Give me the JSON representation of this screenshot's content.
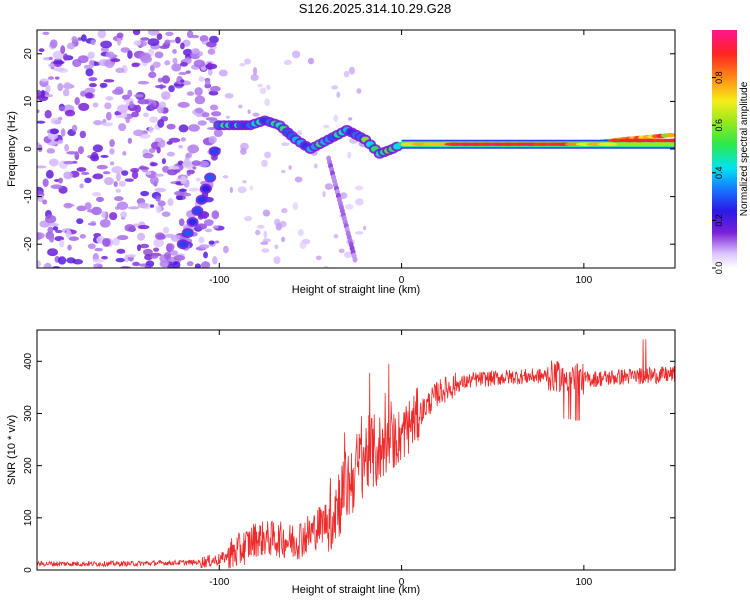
{
  "figure_title": "S126.2025.314.10.29.G28",
  "colors": {
    "snr_line": "#ee2a2a",
    "axes": "#000000",
    "spectrogram_bg": "#ffffff"
  },
  "chart_data": [
    {
      "type": "heatmap",
      "title": "S126.2025.314.10.29.G28",
      "xlabel": "Height of straight line (km)",
      "ylabel": "Frequency (Hz)",
      "xlim": [
        -200,
        150
      ],
      "ylim": [
        -25,
        25
      ],
      "xticks": [
        -100,
        0,
        100
      ],
      "xtick_labels": [
        "-100",
        "0",
        "100"
      ],
      "yticks": [
        -20,
        -10,
        0,
        10,
        20
      ],
      "ytick_labels": [
        "-20",
        "-10",
        "0",
        "10",
        "20"
      ],
      "colorbar": {
        "label": "Normalized spectral amplitude",
        "range": [
          0,
          1
        ],
        "ticks": [
          0.0,
          0.2,
          0.4,
          0.6,
          0.8
        ],
        "tick_labels": [
          "0.0",
          "0.2",
          "0.4",
          "0.6",
          "0.8"
        ]
      },
      "ridge": [
        {
          "x": -120,
          "y": -20
        },
        {
          "x": -112,
          "y": -13
        },
        {
          "x": -105,
          "y": -6
        },
        {
          "x": -100,
          "y": 5
        },
        {
          "x": -92,
          "y": 5
        },
        {
          "x": -83,
          "y": 5
        },
        {
          "x": -75,
          "y": 6
        },
        {
          "x": -67,
          "y": 5
        },
        {
          "x": -58,
          "y": 2
        },
        {
          "x": -50,
          "y": 0
        },
        {
          "x": -40,
          "y": 2
        },
        {
          "x": -30,
          "y": 4
        },
        {
          "x": -20,
          "y": 2
        },
        {
          "x": -12,
          "y": -1
        },
        {
          "x": -5,
          "y": 0
        },
        {
          "x": 0,
          "y": 1
        },
        {
          "x": 20,
          "y": 1
        },
        {
          "x": 40,
          "y": 1
        },
        {
          "x": 60,
          "y": 1
        },
        {
          "x": 80,
          "y": 1
        },
        {
          "x": 100,
          "y": 1
        },
        {
          "x": 120,
          "y": 2
        },
        {
          "x": 150,
          "y": 3
        }
      ]
    },
    {
      "type": "line",
      "title": "",
      "xlabel": "Height of straight line (km)",
      "ylabel": "SNR (10 * v/v)",
      "xlim": [
        -200,
        150
      ],
      "ylim": [
        0,
        460
      ],
      "xticks": [
        -100,
        0,
        100
      ],
      "xtick_labels": [
        "-100",
        "0",
        "100"
      ],
      "yticks": [
        0,
        100,
        200,
        300,
        400
      ],
      "ytick_labels": [
        "0",
        "100",
        "200",
        "300",
        "400"
      ],
      "series": [
        {
          "name": "SNR",
          "envelope": {
            "x": [
              -200,
              -150,
              -110,
              -100,
              -90,
              -80,
              -70,
              -60,
              -50,
              -40,
              -30,
              -20,
              -10,
              0,
              10,
              20,
              30,
              40,
              60,
              80,
              90,
              100,
              120,
              150
            ],
            "y": [
              12,
              12,
              15,
              20,
              35,
              60,
              60,
              55,
              70,
              100,
              160,
              220,
              230,
              260,
              300,
              340,
              355,
              365,
              370,
              372,
              370,
              365,
              370,
              375
            ]
          }
        }
      ]
    }
  ]
}
